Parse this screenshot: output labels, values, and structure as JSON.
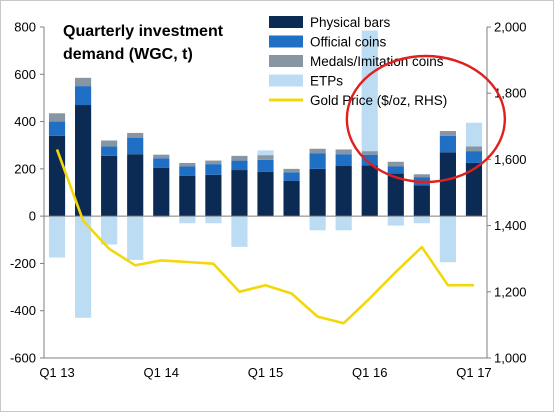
{
  "chart_data": {
    "type": "bar",
    "title_lines": [
      "Quarterly investment",
      "demand (WGC, t)"
    ],
    "categories": [
      "Q1 13",
      "Q2 13",
      "Q3 13",
      "Q4 13",
      "Q1 14",
      "Q2 14",
      "Q3 14",
      "Q4 14",
      "Q1 15",
      "Q2 15",
      "Q3 15",
      "Q4 15",
      "Q1 16",
      "Q2 16",
      "Q3 16",
      "Q4 16",
      "Q1 17"
    ],
    "x_tick_labels": [
      {
        "index": 0,
        "label": "Q1 13"
      },
      {
        "index": 4,
        "label": "Q1 14"
      },
      {
        "index": 8,
        "label": "Q1 15"
      },
      {
        "index": 12,
        "label": "Q1 16"
      },
      {
        "index": 16,
        "label": "Q1 17"
      }
    ],
    "y_left": {
      "min": -600,
      "max": 800,
      "ticks": [
        -600,
        -400,
        -200,
        0,
        200,
        400,
        600,
        800
      ]
    },
    "y_right": {
      "min": 1000,
      "max": 2000,
      "ticks": [
        "1,000",
        "1,200",
        "1,400",
        "1,600",
        "1,800",
        "2,000"
      ],
      "tick_values": [
        1000,
        1200,
        1400,
        1600,
        1800,
        2000
      ]
    },
    "series": [
      {
        "name": "Physical bars",
        "color": "#0b2a54",
        "kind": "stack",
        "values": [
          340,
          470,
          255,
          262,
          205,
          170,
          175,
          195,
          188,
          150,
          200,
          212,
          215,
          180,
          130,
          270,
          225
        ]
      },
      {
        "name": "Official coins",
        "color": "#1f6fc5",
        "kind": "stack",
        "values": [
          60,
          80,
          40,
          70,
          40,
          40,
          45,
          40,
          50,
          35,
          65,
          50,
          45,
          30,
          35,
          70,
          50
        ]
      },
      {
        "name": "Medals/Imitation coins",
        "color": "#8896a4",
        "kind": "stack",
        "values": [
          35,
          35,
          25,
          20,
          15,
          15,
          15,
          20,
          20,
          15,
          20,
          20,
          15,
          20,
          12,
          20,
          20
        ]
      },
      {
        "name": "ETPs",
        "color": "#bcdcf4",
        "kind": "stack",
        "values": [
          -175,
          -430,
          -120,
          -185,
          -5,
          -30,
          -30,
          -130,
          20,
          0,
          -60,
          -60,
          510,
          -40,
          -30,
          -195,
          100
        ]
      },
      {
        "name": "Gold Price ($/oz, RHS)",
        "color": "#f2d80a",
        "kind": "line",
        "axis": "right",
        "values": [
          1630,
          1415,
          1330,
          1280,
          1295,
          1290,
          1285,
          1200,
          1220,
          1195,
          1125,
          1105,
          1180,
          1260,
          1335,
          1220,
          1220
        ]
      }
    ],
    "legend_position": "top-right",
    "grid": false,
    "annotation": {
      "shape": "ellipse",
      "color": "#e0201e",
      "around_categories": [
        12,
        16
      ]
    }
  }
}
